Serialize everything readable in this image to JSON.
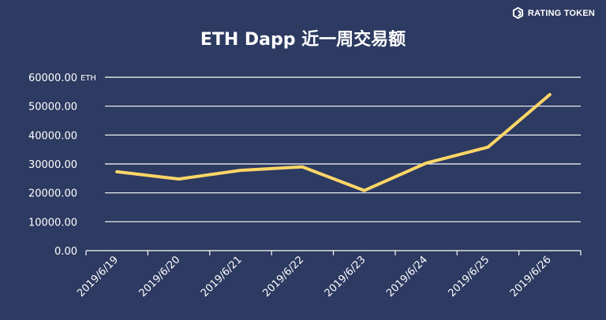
{
  "brand": {
    "name": "RATING TOKEN",
    "icon": "rating-token-logo-icon"
  },
  "colors": {
    "background": "#2d3a61",
    "line": "#ffd666",
    "grid": "#ffffff",
    "text": "#ffffff"
  },
  "chart_data": {
    "type": "line",
    "title": "ETH Dapp 近一周交易额",
    "ylabel": "ETH",
    "xlabel": "",
    "categories": [
      "2019/6/19",
      "2019/6/20",
      "2019/6/21",
      "2019/6/22",
      "2019/6/23",
      "2019/6/24",
      "2019/6/25",
      "2019/6/26"
    ],
    "series": [
      {
        "values": [
          27300,
          24800,
          27800,
          29000,
          20800,
          30300,
          35800,
          54000
        ]
      }
    ],
    "yticks": [
      "0.00",
      "10000.00",
      "20000.00",
      "30000.00",
      "40000.00",
      "50000.00",
      "60000.00"
    ],
    "ylim": [
      0,
      60000
    ],
    "grid": true,
    "legend": "none"
  }
}
